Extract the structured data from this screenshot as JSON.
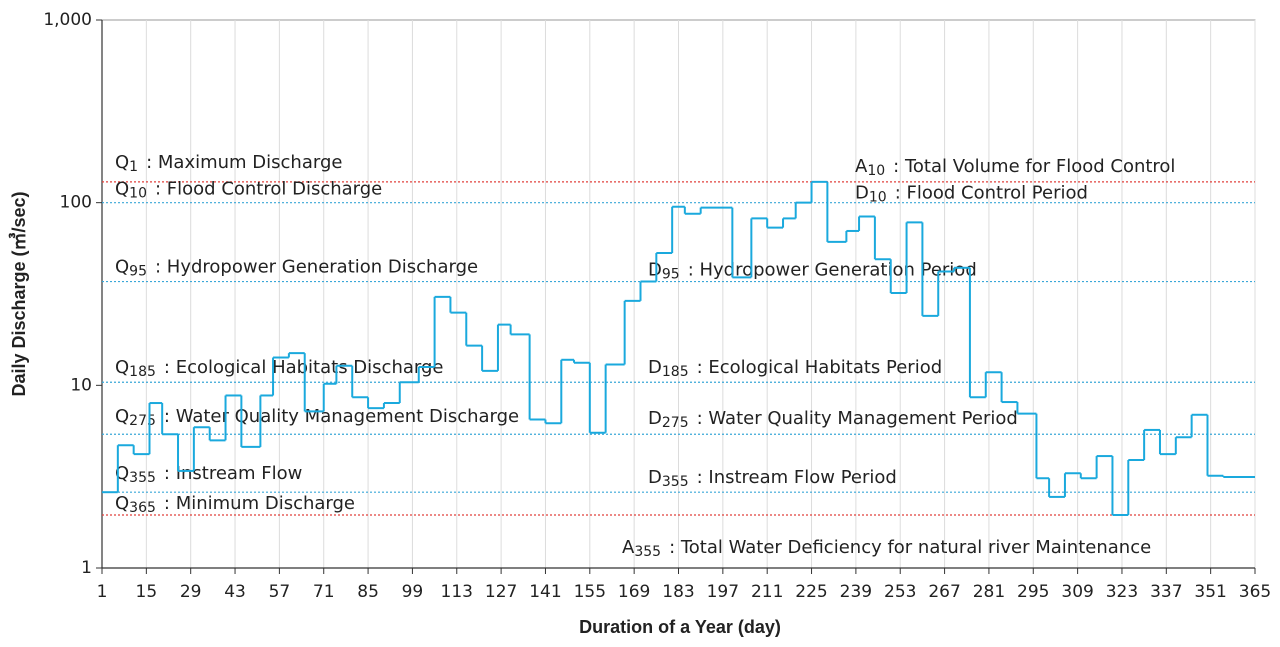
{
  "chart_data": {
    "type": "line",
    "step": "post",
    "x_label": "Duration of a Year (day)",
    "y_label": "Daily Discharge (㎥/sec)",
    "xlim": [
      1,
      365
    ],
    "ylim": [
      1,
      1000
    ],
    "log_y": true,
    "grid": true,
    "xticks": [
      1,
      15,
      29,
      43,
      57,
      71,
      85,
      99,
      113,
      127,
      141,
      155,
      169,
      183,
      197,
      211,
      225,
      239,
      253,
      267,
      281,
      295,
      309,
      323,
      337,
      351,
      365
    ],
    "yticks": [
      1,
      10,
      100,
      {
        "value": 1000,
        "label": "1,000"
      }
    ],
    "series": [
      {
        "color": "#1aa9dd",
        "x": [
          1,
          6,
          11,
          16,
          20,
          25,
          30,
          35,
          40,
          45,
          51,
          55,
          60,
          65,
          71,
          75,
          80,
          85,
          90,
          95,
          101,
          106,
          111,
          116,
          121,
          126,
          130,
          136,
          141,
          146,
          150,
          155,
          160,
          166,
          171,
          176,
          181,
          185,
          190,
          200,
          206,
          211,
          216,
          220,
          225,
          230,
          236,
          240,
          245,
          250,
          255,
          260,
          265,
          270,
          275,
          280,
          285,
          290,
          296,
          300,
          305,
          310,
          315,
          320,
          325,
          330,
          335,
          340,
          345,
          350,
          355
        ],
        "values": [
          2.6,
          4.7,
          4.2,
          8.0,
          5.4,
          3.4,
          5.9,
          5.0,
          8.8,
          4.6,
          8.8,
          14.2,
          15.0,
          7.2,
          10.2,
          12.8,
          8.6,
          7.5,
          8.0,
          10.4,
          12.6,
          30.5,
          25,
          16.5,
          12.0,
          21.5,
          19,
          6.5,
          6.2,
          13.8,
          13.3,
          5.5,
          13.0,
          29,
          37,
          53,
          95,
          87,
          94,
          39,
          82,
          73,
          82,
          100,
          130,
          61,
          70,
          84,
          49,
          32,
          78,
          24,
          42,
          44,
          8.6,
          11.8,
          8.1,
          7.0,
          3.1,
          2.45,
          3.3,
          3.1,
          4.1,
          1.95,
          3.9,
          5.7,
          4.2,
          5.2,
          6.9,
          3.2,
          3.15
        ]
      }
    ],
    "reference_lines": [
      {
        "value": 130,
        "color": "#e0413c",
        "label": {
          "symbol": "Q",
          "sub": "1",
          "text": ": Maximum Discharge"
        },
        "right_label": {
          "symbol": "A",
          "sub": "10",
          "text": ": Total Volume for Flood Control"
        }
      },
      {
        "value": 100,
        "color": "#3aa7d8",
        "label": {
          "symbol": "Q",
          "sub": "10",
          "text": ": Flood Control Discharge"
        },
        "right_label": {
          "symbol": "D",
          "sub": "10",
          "text": ": Flood Control Period"
        }
      },
      {
        "value": 37,
        "color": "#3aa7d8",
        "label": {
          "symbol": "Q",
          "sub": "95",
          "text": ": Hydropower Generation Discharge"
        },
        "right_label": {
          "symbol": "D",
          "sub": "95",
          "text": ": Hydropower Generation Period"
        }
      },
      {
        "value": 10.4,
        "color": "#3aa7d8",
        "label": {
          "symbol": "Q",
          "sub": "185",
          "text": ": Ecological Habitats Discharge"
        },
        "right_label": {
          "symbol": "D",
          "sub": "185",
          "text": ": Ecological Habitats Period"
        }
      },
      {
        "value": 5.4,
        "color": "#3aa7d8",
        "label": {
          "symbol": "Q",
          "sub": "275",
          "text": ": Water Quality Management Discharge"
        },
        "right_label": {
          "symbol": "D",
          "sub": "275",
          "text": ": Water Quality Management Period"
        }
      },
      {
        "value": 2.6,
        "color": "#3aa7d8",
        "label": {
          "symbol": "Q",
          "sub": "355",
          "text": ": Instream Flow"
        },
        "right_label": {
          "symbol": "D",
          "sub": "355",
          "text": ": Instream Flow Period"
        }
      },
      {
        "value": 1.95,
        "color": "#e0413c",
        "label": {
          "symbol": "Q",
          "sub": "365",
          "text": ": Minimum Discharge"
        },
        "right_label": {
          "symbol": "A",
          "sub": "355",
          "text": ": Total Water Deficiency for natural river Maintenance"
        }
      }
    ]
  }
}
